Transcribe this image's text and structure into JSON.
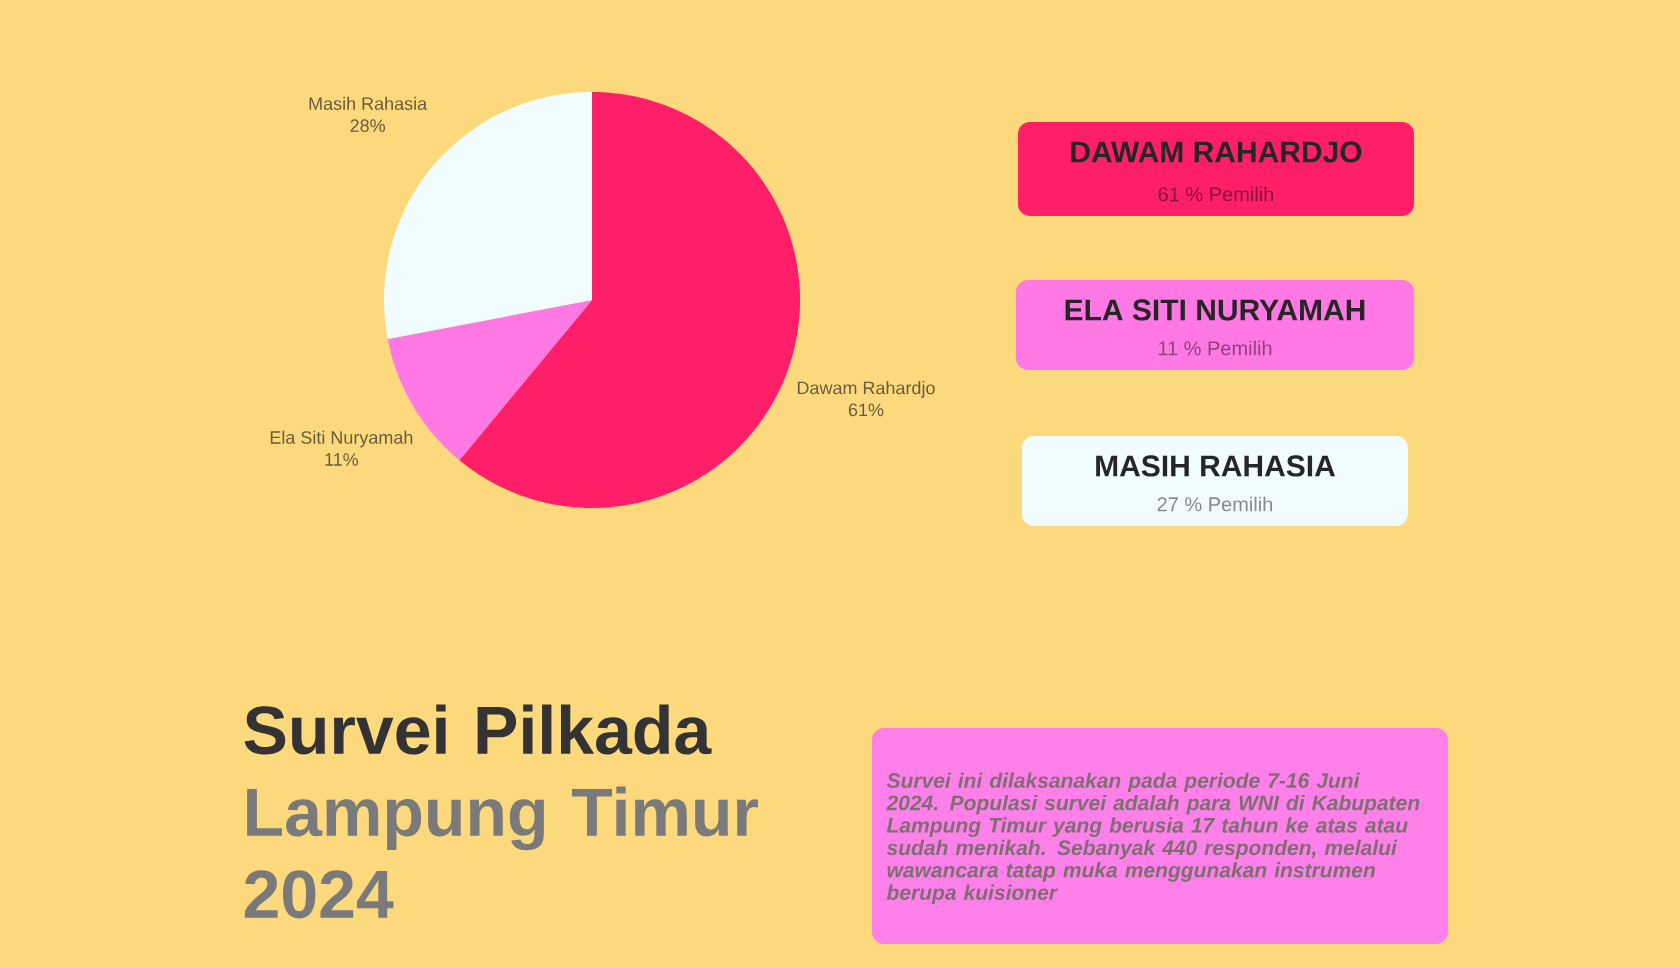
{
  "chart_data": {
    "type": "pie",
    "title": "Survei Pilkada",
    "subtitle": "Lampung Timur 2024",
    "categories": [
      "Dawam Rahardjo",
      "Ela Siti Nuryamah",
      "Masih Rahasia"
    ],
    "values": [
      61,
      11,
      28
    ],
    "value_labels": [
      "61%",
      "11%",
      "28%"
    ],
    "colors": [
      "#ff1f68",
      "#ff78e4",
      "#f1fcff"
    ],
    "annotations": [
      "DAWAM RAHARDJO",
      "61 % Pemilih",
      "ELA SITI NURYAMAH",
      "11 % Pemilih",
      "MASIH RAHASIA",
      "27 % Pemilih",
      "Survei ini dilaksanakan pada periode 7-16 Juni 2024. Populasi survei adalah para WNI di Kabupaten Lampung Timur yang berusia 17 tahun ke atas atau sudah menikah. Sebanyak 440 responden, melalui wawancara tatap muka menggunakan instrumen berupa kuisioner"
    ]
  }
}
